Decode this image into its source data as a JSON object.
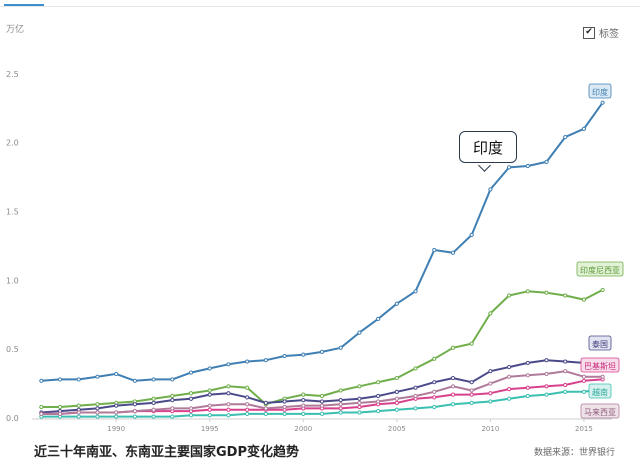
{
  "unit_label": "万亿",
  "legend_toggle": {
    "label": "标签",
    "checked": true
  },
  "caption": "近三十年南亚、东南亚主要国家GDP变化趋势",
  "source": "数据来源：世界银行",
  "annotation": "印度",
  "chart_data": {
    "type": "line",
    "y_ticks": [
      "0.0",
      "0.5",
      "1.0",
      "1.5",
      "2.0",
      "2.5"
    ],
    "x_ticks": [
      "1990",
      "1995",
      "2000",
      "2005",
      "2010",
      "2015"
    ],
    "ylim": [
      0,
      2.6
    ],
    "xlim": [
      1985.5,
      2016.5
    ],
    "grid": false,
    "x": [
      1986,
      1987,
      1988,
      1989,
      1990,
      1991,
      1992,
      1993,
      1994,
      1995,
      1996,
      1997,
      1998,
      1999,
      2000,
      2001,
      2002,
      2003,
      2004,
      2005,
      2006,
      2007,
      2008,
      2009,
      2010,
      2011,
      2012,
      2013,
      2014,
      2015,
      2016
    ],
    "series": [
      {
        "name": "印度",
        "color": "#3f7fb3",
        "label_color": "#3f7fb3",
        "label_bg": "#dbe9f5",
        "values": [
          0.27,
          0.28,
          0.28,
          0.3,
          0.32,
          0.27,
          0.28,
          0.28,
          0.33,
          0.36,
          0.39,
          0.41,
          0.42,
          0.45,
          0.46,
          0.48,
          0.51,
          0.62,
          0.72,
          0.83,
          0.92,
          1.22,
          1.2,
          1.33,
          1.66,
          1.82,
          1.83,
          1.86,
          2.04,
          2.1,
          2.29
        ]
      },
      {
        "name": "印度尼西亚",
        "color": "#6fae4a",
        "label_color": "#5a9a38",
        "label_bg": "#e3f1d6",
        "values": [
          0.08,
          0.08,
          0.09,
          0.1,
          0.11,
          0.12,
          0.14,
          0.16,
          0.18,
          0.2,
          0.23,
          0.22,
          0.1,
          0.14,
          0.17,
          0.16,
          0.2,
          0.23,
          0.26,
          0.29,
          0.36,
          0.43,
          0.51,
          0.54,
          0.76,
          0.89,
          0.92,
          0.91,
          0.89,
          0.86,
          0.93
        ]
      },
      {
        "name": "泰国",
        "color": "#4a4a8a",
        "label_color": "#3d3d7a",
        "label_bg": "#e3e3f1",
        "values": [
          0.04,
          0.05,
          0.06,
          0.07,
          0.09,
          0.1,
          0.11,
          0.13,
          0.14,
          0.17,
          0.18,
          0.15,
          0.11,
          0.12,
          0.13,
          0.12,
          0.13,
          0.14,
          0.16,
          0.19,
          0.22,
          0.26,
          0.29,
          0.26,
          0.34,
          0.37,
          0.4,
          0.42,
          0.41,
          0.4,
          0.41
        ]
      },
      {
        "name": "巴基斯坦",
        "color": "#d8418c",
        "label_color": "#c82e7c",
        "label_bg": "#f7dcea",
        "values": [
          0.03,
          0.03,
          0.04,
          0.04,
          0.04,
          0.05,
          0.05,
          0.05,
          0.05,
          0.06,
          0.06,
          0.06,
          0.06,
          0.06,
          0.07,
          0.07,
          0.07,
          0.08,
          0.1,
          0.11,
          0.14,
          0.15,
          0.17,
          0.17,
          0.18,
          0.21,
          0.22,
          0.23,
          0.24,
          0.27,
          0.28
        ]
      },
      {
        "name": "越南",
        "color": "#3bbfb0",
        "label_color": "#2aa99c",
        "label_bg": "#d6f1ee",
        "values": [
          0.01,
          0.01,
          0.01,
          0.01,
          0.01,
          0.01,
          0.01,
          0.01,
          0.02,
          0.02,
          0.02,
          0.03,
          0.03,
          0.03,
          0.03,
          0.03,
          0.04,
          0.04,
          0.05,
          0.06,
          0.07,
          0.08,
          0.1,
          0.11,
          0.12,
          0.14,
          0.16,
          0.17,
          0.19,
          0.19,
          0.21
        ]
      },
      {
        "name": "马来西亚",
        "color": "#b07a9a",
        "label_color": "#8e5a7a",
        "label_bg": "#efe3ea",
        "values": [
          0.03,
          0.03,
          0.04,
          0.04,
          0.04,
          0.05,
          0.06,
          0.07,
          0.07,
          0.09,
          0.1,
          0.1,
          0.07,
          0.08,
          0.09,
          0.09,
          0.1,
          0.11,
          0.12,
          0.14,
          0.16,
          0.19,
          0.23,
          0.2,
          0.25,
          0.3,
          0.31,
          0.32,
          0.34,
          0.3,
          0.3
        ]
      }
    ]
  }
}
